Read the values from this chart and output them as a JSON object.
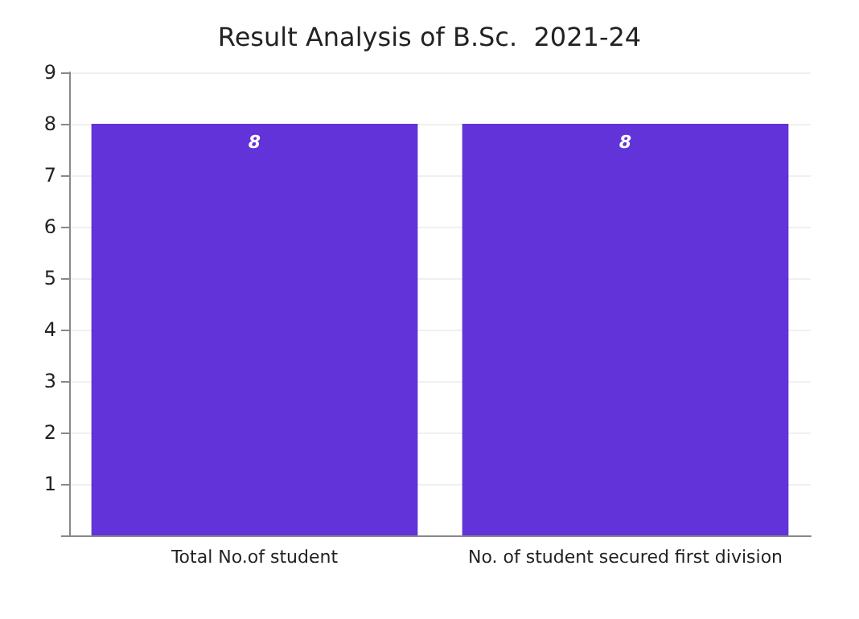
{
  "chart_data": {
    "type": "bar",
    "title": "Result Analysis of B.Sc.  2021-24",
    "categories": [
      "Total No.of student",
      "No. of student secured first division"
    ],
    "values": [
      8,
      8
    ],
    "color": "#6233d9",
    "ylim": [
      0,
      9
    ],
    "yticks": [
      {
        "value": 0,
        "label": null
      },
      1,
      2,
      3,
      4,
      5,
      6,
      7,
      8,
      9
    ],
    "grid": "y",
    "data_labels": true
  }
}
